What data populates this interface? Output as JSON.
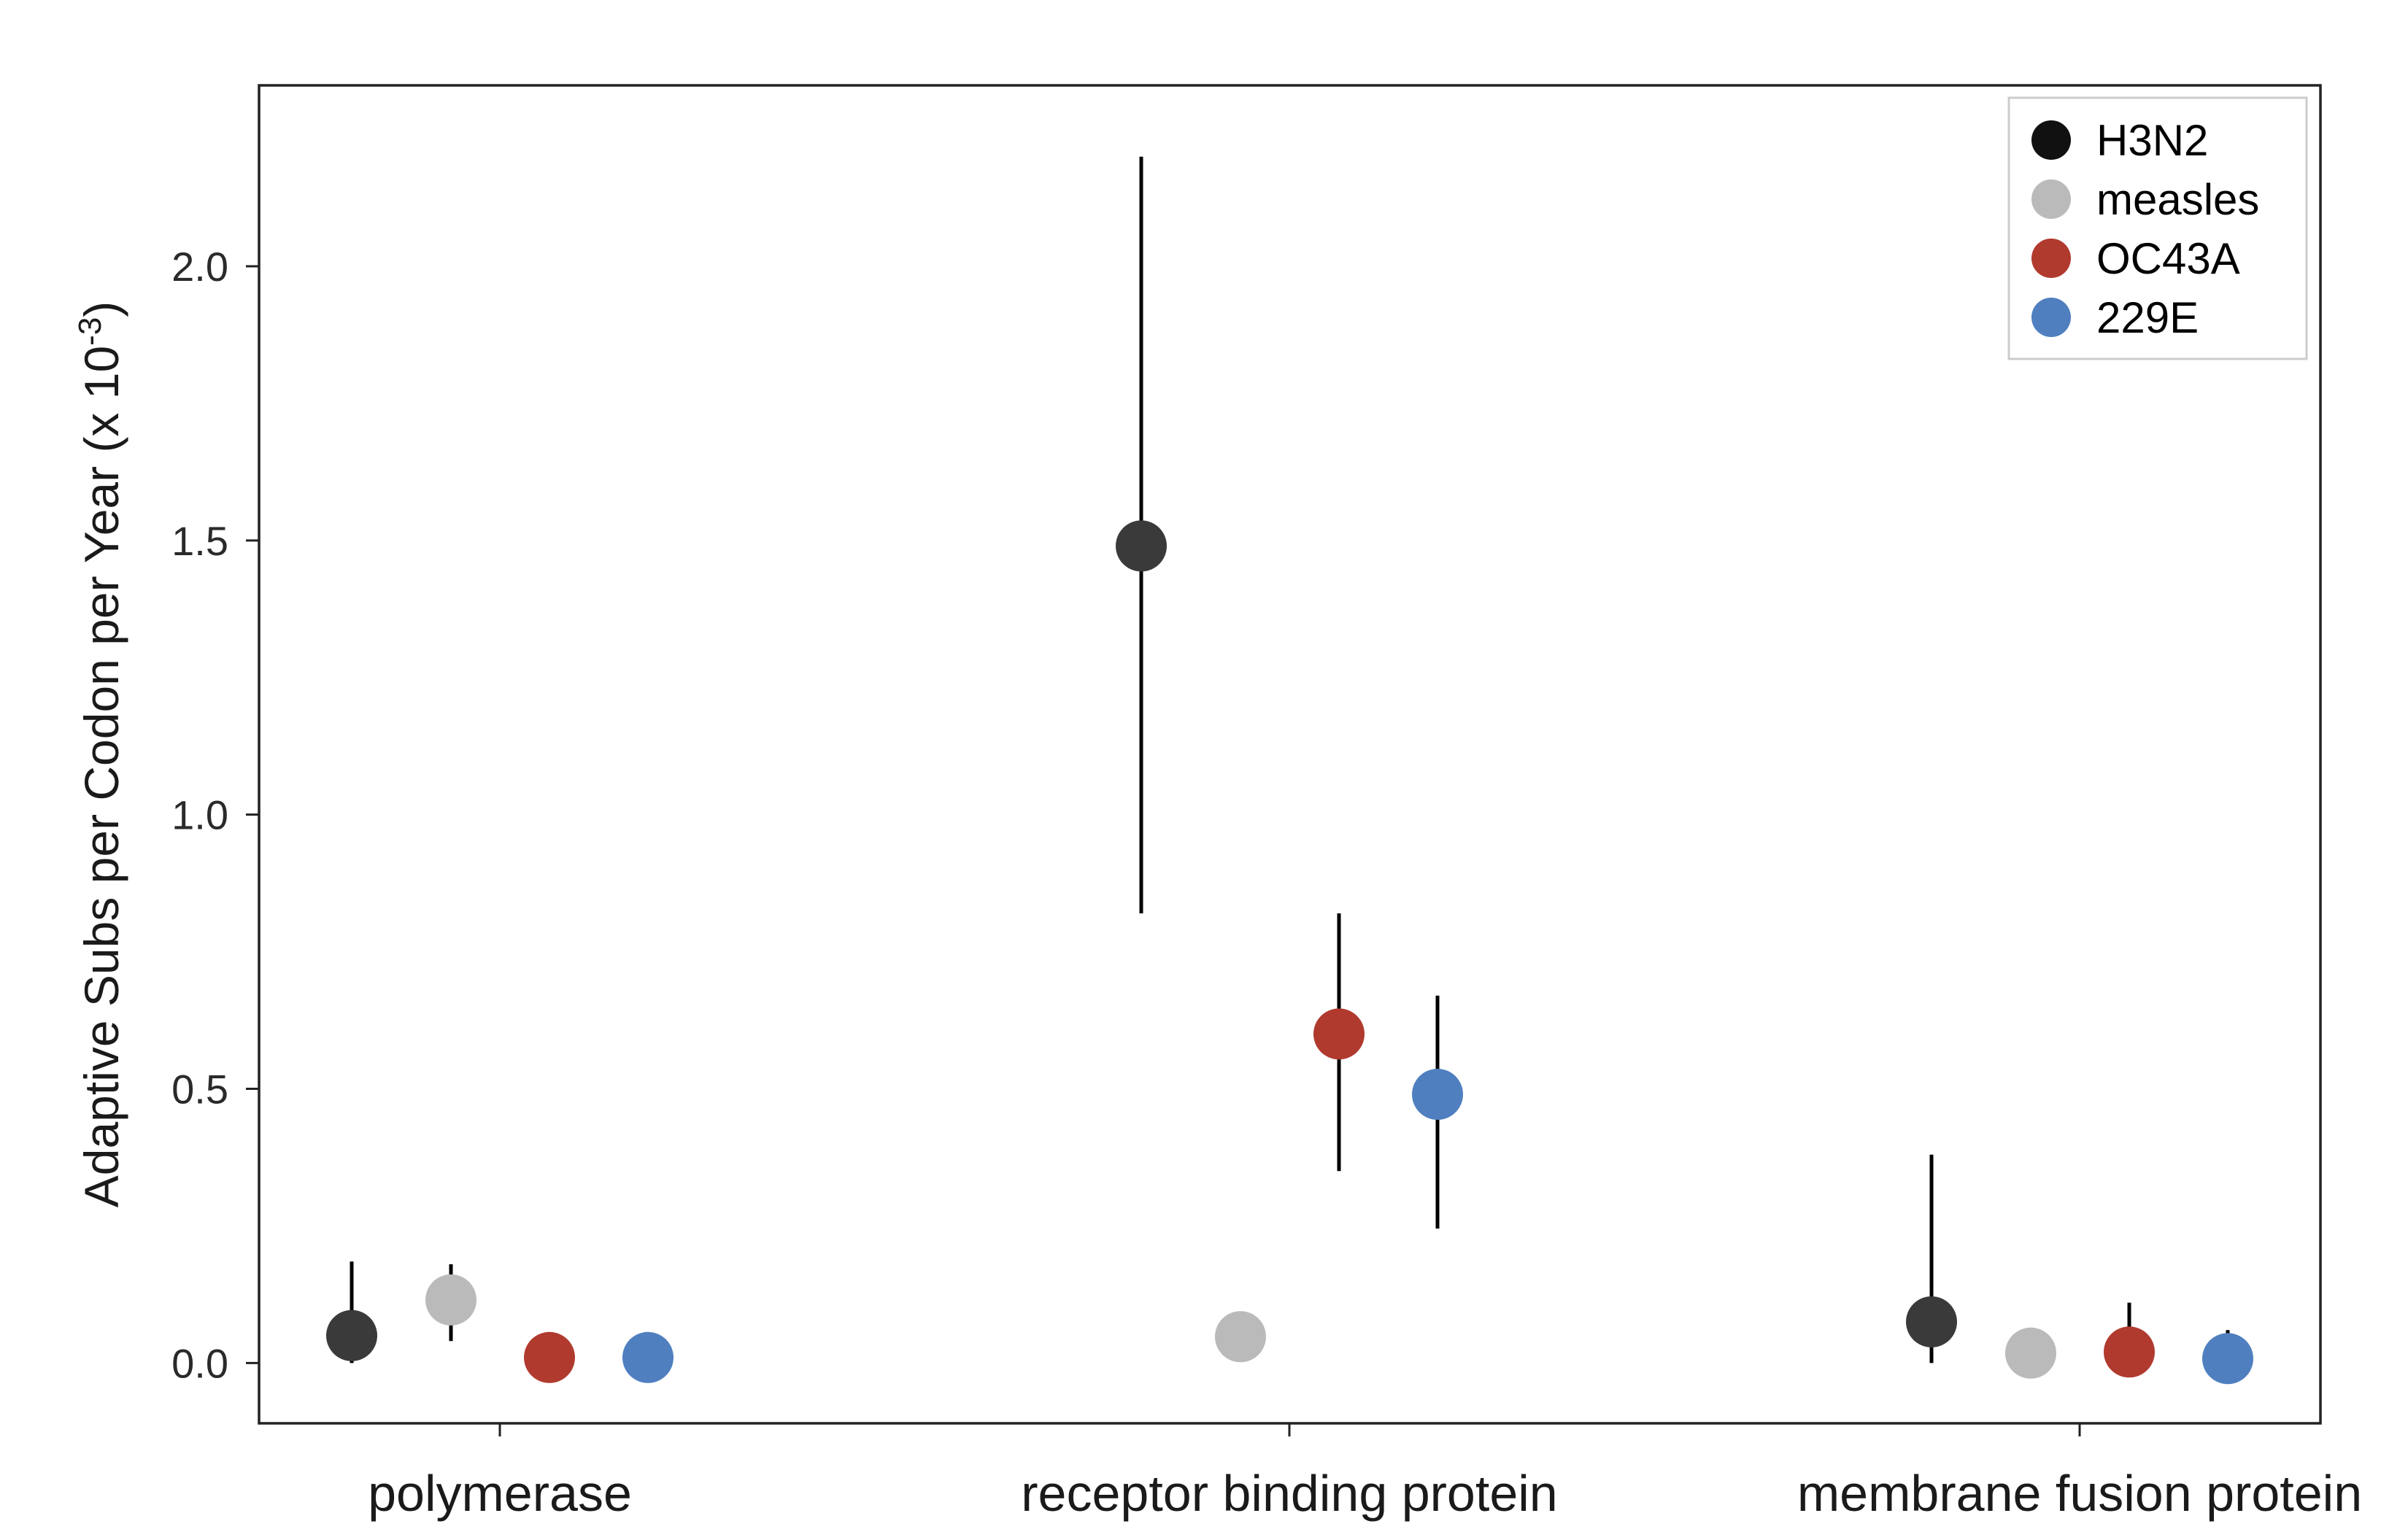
{
  "chart_data": {
    "type": "scatter",
    "title": "",
    "xlabel": "",
    "ylabel": {
      "main": "Adaptive Subs per Codon per Year (x 10",
      "sup": "-3",
      "end": ")"
    },
    "ylim": [
      -0.11,
      2.33
    ],
    "yticks": [
      0.0,
      0.5,
      1.0,
      1.5,
      2.0
    ],
    "ytick_labels": [
      "0.0",
      "0.5",
      "1.0",
      "1.5",
      "2.0"
    ],
    "categories": [
      "polymerase",
      "receptor binding protein",
      "membrane fusion protein"
    ],
    "grid": false,
    "legend_position": "top-right",
    "series": [
      {
        "name": "H3N2",
        "color": "#3a3a3a",
        "legend_color": "#111111",
        "values": [
          0.05,
          1.49,
          0.075
        ],
        "err_low": [
          0.0,
          0.82,
          0.0
        ],
        "err_high": [
          0.185,
          2.2,
          0.38
        ]
      },
      {
        "name": "measles",
        "color": "#bababa",
        "legend_color": "#bababa",
        "values": [
          0.115,
          0.048,
          0.018
        ],
        "err_low": [
          0.04,
          null,
          null
        ],
        "err_high": [
          0.18,
          null,
          null
        ]
      },
      {
        "name": "OC43A",
        "color": "#b03a2e",
        "legend_color": "#b03a2e",
        "values": [
          0.01,
          0.6,
          0.02
        ],
        "err_low": [
          null,
          0.35,
          null
        ],
        "err_high": [
          null,
          0.82,
          0.11
        ]
      },
      {
        "name": "229E",
        "color": "#4f7fbf",
        "legend_color": "#4f7fbf",
        "values": [
          0.01,
          0.49,
          0.008
        ],
        "err_low": [
          null,
          0.245,
          null
        ],
        "err_high": [
          null,
          0.67,
          0.06
        ]
      }
    ]
  }
}
